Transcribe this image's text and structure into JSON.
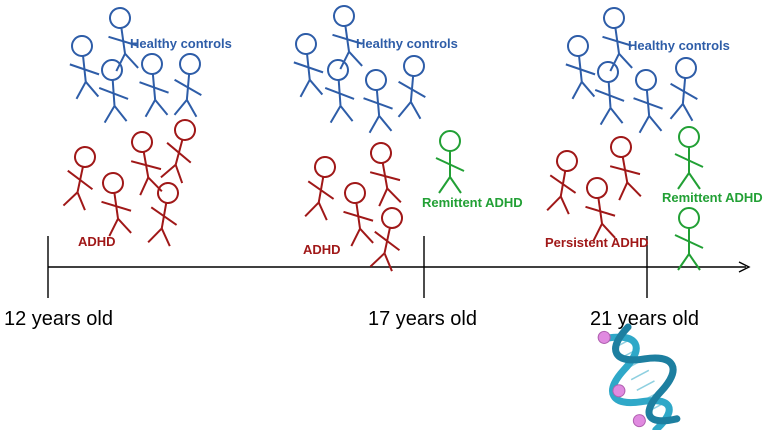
{
  "timeline": {
    "ages": [
      "12 years old",
      "17 years old",
      "21 years old"
    ]
  },
  "groups": {
    "healthy_controls": "Healthy controls",
    "adhd": "ADHD",
    "remittent_adhd": "Remittent ADHD",
    "persistent_adhd": "Persistent ADHD"
  },
  "colors": {
    "healthy": "#2e5da8",
    "adhd": "#a01818",
    "remittent": "#22a035",
    "axis": "#000000",
    "dna_helix": "#2fa8c8",
    "dna_node": "#e08ae0"
  },
  "icons": [
    "stick-figure-icon",
    "dna-helix-icon",
    "arrow-right-icon"
  ]
}
